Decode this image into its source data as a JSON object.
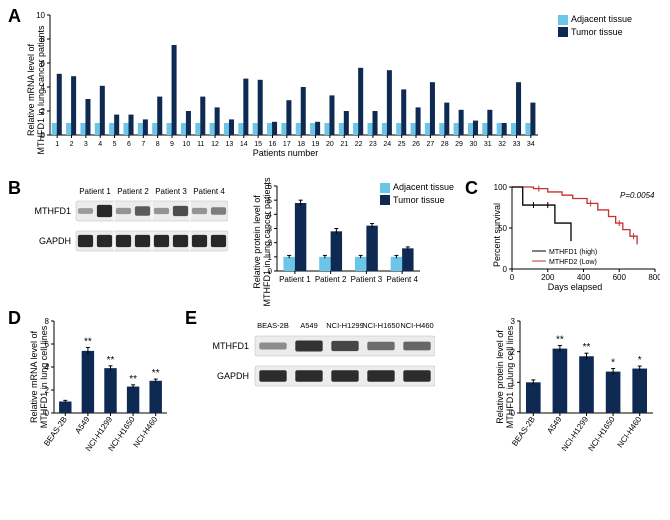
{
  "colors": {
    "adjacent": "#6bc5e8",
    "tumor": "#0e2952",
    "axis": "#000000",
    "grid": "#cccccc",
    "bg": "#ffffff",
    "high_line": "#000000",
    "low_line": "#c73030"
  },
  "legend": {
    "adjacent": "Adjacent tissue",
    "tumor": "Tumor tissue"
  },
  "panelA": {
    "label": "A",
    "ylabel": "Relative mRNA level of\nMTHFD1 in lung cancer patients",
    "xlabel": "Patients number",
    "ylim": [
      0,
      10
    ],
    "ytick_step": 2,
    "categories": [
      "1",
      "2",
      "3",
      "4",
      "5",
      "6",
      "7",
      "8",
      "9",
      "10",
      "11",
      "12",
      "13",
      "14",
      "15",
      "16",
      "17",
      "18",
      "19",
      "20",
      "21",
      "22",
      "23",
      "24",
      "25",
      "26",
      "27",
      "28",
      "29",
      "30",
      "31",
      "32",
      "33",
      "34"
    ],
    "adjacent": [
      1.0,
      1.0,
      1.0,
      1.0,
      1.0,
      1.0,
      1.0,
      1.0,
      1.0,
      1.0,
      1.0,
      1.0,
      1.0,
      1.0,
      1.0,
      1.0,
      1.0,
      1.0,
      1.0,
      1.0,
      1.0,
      1.0,
      1.0,
      1.0,
      1.0,
      1.0,
      1.0,
      1.0,
      1.0,
      1.0,
      1.0,
      1.0,
      1.0,
      1.0
    ],
    "tumor": [
      5.1,
      4.9,
      3.0,
      4.1,
      1.7,
      1.7,
      1.3,
      3.2,
      7.5,
      2.0,
      3.2,
      2.3,
      1.3,
      4.7,
      4.6,
      1.1,
      2.9,
      4.0,
      1.1,
      3.3,
      2.0,
      5.6,
      2.0,
      5.4,
      3.8,
      2.3,
      4.4,
      2.7,
      2.1,
      1.2,
      2.1,
      1.0,
      4.4,
      2.7
    ]
  },
  "panelB": {
    "label": "B",
    "row_labels": [
      "MTHFD1",
      "GAPDH"
    ],
    "patients": [
      "Patient 1",
      "Patient 2",
      "Patient 3",
      "Patient 4"
    ],
    "chart": {
      "ylabel": "Relative protein level of\nMTHFD1 in lung cancer patients",
      "ylim": [
        0,
        6
      ],
      "ytick_step": 1,
      "categories": [
        "Patient 1",
        "Patient 2",
        "Patient 3",
        "Patient 4"
      ],
      "adjacent": [
        1.0,
        1.0,
        1.0,
        1.0
      ],
      "adjacent_err": [
        0.1,
        0.1,
        0.1,
        0.1
      ],
      "tumor": [
        4.8,
        2.8,
        3.2,
        1.6
      ],
      "tumor_err": [
        0.2,
        0.2,
        0.15,
        0.1
      ]
    }
  },
  "panelC": {
    "label": "C",
    "ylabel": "Percent survival",
    "xlabel": "Days elapsed",
    "xlim": [
      0,
      800
    ],
    "xtick_step": 200,
    "ylim": [
      0,
      100
    ],
    "ytick_step": 50,
    "pvalue": "P=0.0054",
    "legend_high": "MTHFD1 (high)",
    "legend_low": "MTHFD2 (Low)",
    "high": [
      [
        0,
        100
      ],
      [
        60,
        100
      ],
      [
        60,
        78
      ],
      [
        240,
        78
      ],
      [
        240,
        56
      ],
      [
        330,
        56
      ],
      [
        330,
        34
      ]
    ],
    "low": [
      [
        0,
        100
      ],
      [
        120,
        100
      ],
      [
        120,
        98
      ],
      [
        200,
        98
      ],
      [
        200,
        94
      ],
      [
        280,
        94
      ],
      [
        280,
        90
      ],
      [
        340,
        90
      ],
      [
        340,
        86
      ],
      [
        420,
        86
      ],
      [
        420,
        80
      ],
      [
        480,
        80
      ],
      [
        480,
        72
      ],
      [
        540,
        72
      ],
      [
        540,
        64
      ],
      [
        580,
        64
      ],
      [
        580,
        56
      ],
      [
        620,
        56
      ],
      [
        620,
        48
      ],
      [
        660,
        48
      ],
      [
        660,
        40
      ],
      [
        700,
        40
      ],
      [
        700,
        30
      ]
    ],
    "censor_high": [
      [
        120,
        78
      ],
      [
        200,
        78
      ]
    ],
    "censor_low": [
      [
        150,
        98
      ],
      [
        440,
        80
      ],
      [
        600,
        56
      ],
      [
        680,
        40
      ]
    ]
  },
  "panelD": {
    "label": "D",
    "ylabel": "Relative mRNA level of\nMTHFD1 in lung cell lines",
    "ylim": [
      0,
      8
    ],
    "ytick_step": 2,
    "categories": [
      "BEAS-2B",
      "A549",
      "NCI-H1299",
      "NCI-H1650",
      "NCI-H460"
    ],
    "values": [
      1.0,
      5.4,
      3.9,
      2.3,
      2.8
    ],
    "err": [
      0.1,
      0.3,
      0.2,
      0.15,
      0.15
    ],
    "sig": [
      "",
      "**",
      "**",
      "**",
      "**"
    ]
  },
  "panelE": {
    "label": "E",
    "row_labels": [
      "MTHFD1",
      "GAPDH"
    ],
    "lanes": [
      "BEAS-2B",
      "A549",
      "NCI-H1299",
      "NCI-H1650",
      "NCI-H460"
    ],
    "chart": {
      "ylabel": "Relative protein level of\nMTHFD1 in lung cell lines",
      "ylim": [
        0,
        3
      ],
      "ytick_step": 1,
      "categories": [
        "BEAS-2B",
        "A549",
        "NCI-H1299",
        "NCI-H1650",
        "NCI-H460"
      ],
      "values": [
        1.0,
        2.1,
        1.85,
        1.35,
        1.45
      ],
      "err": [
        0.08,
        0.1,
        0.1,
        0.1,
        0.08
      ],
      "sig": [
        "",
        "**",
        "**",
        "*",
        "*"
      ]
    }
  }
}
